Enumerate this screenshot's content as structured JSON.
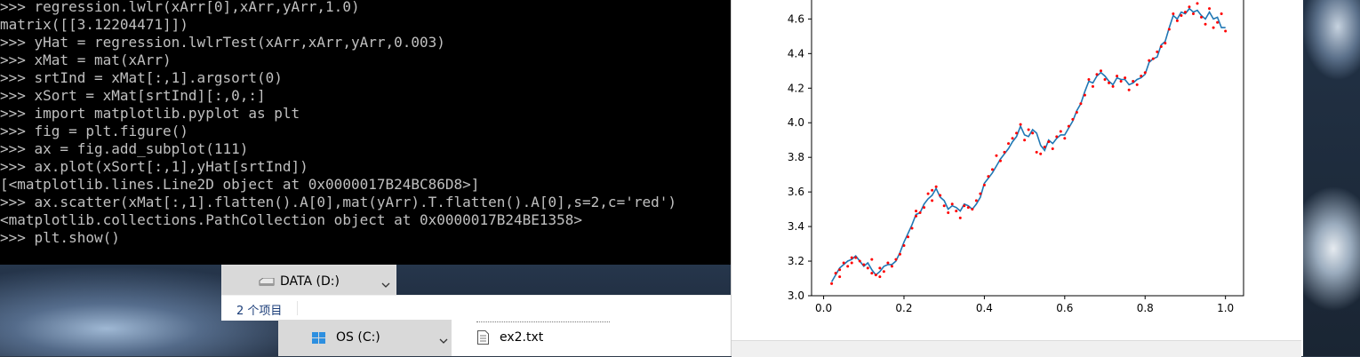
{
  "console": {
    "lines": [
      ">>> regression.lwlr(xArr[0],xArr,yArr,1.0)",
      "matrix([[3.12204471]])",
      ">>> yHat = regression.lwlrTest(xArr,xArr,yArr,0.003)",
      ">>> xMat = mat(xArr)",
      ">>> srtInd = xMat[:,1].argsort(0)",
      ">>> xSort = xMat[srtInd][:,0,:]",
      ">>> import matplotlib.pyplot as plt",
      ">>> fig = plt.figure()",
      ">>> ax = fig.add_subplot(111)",
      ">>> ax.plot(xSort[:,1],yHat[srtInd])",
      "[<matplotlib.lines.Line2D object at 0x0000017B24BC86D8>]",
      ">>> ax.scatter(xMat[:,1].flatten().A[0],mat(yArr).T.flatten().A[0],s=2,c='red')",
      "<matplotlib.collections.PathCollection object at 0x0000017B24BE1358>",
      ">>> plt.show()"
    ]
  },
  "explorer": {
    "drive_d_label": "DATA (D:)",
    "status_count": "2 个项目",
    "drive_c_label": "OS (C:)",
    "file_name": "ex2.txt"
  },
  "chart_data": {
    "type": "scatter",
    "xlim": [
      -0.03,
      1.045
    ],
    "ylim": [
      3.0,
      4.72
    ],
    "xticks": [
      "0.0",
      "0.2",
      "0.4",
      "0.6",
      "0.8",
      "1.0"
    ],
    "xtick_values": [
      0.0,
      0.2,
      0.4,
      0.6,
      0.8,
      1.0
    ],
    "yticks": [
      "3.0",
      "3.2",
      "3.4",
      "3.6",
      "3.8",
      "4.0",
      "4.2",
      "4.4",
      "4.6"
    ],
    "ytick_values": [
      3.0,
      3.2,
      3.4,
      3.6,
      3.8,
      4.0,
      4.2,
      4.4,
      4.6
    ],
    "grid": false,
    "line_color": "#1f77b4",
    "point_color": "#ff0000",
    "line": {
      "x": [
        0.02,
        0.03,
        0.04,
        0.05,
        0.06,
        0.07,
        0.08,
        0.09,
        0.1,
        0.11,
        0.12,
        0.13,
        0.14,
        0.15,
        0.16,
        0.17,
        0.18,
        0.19,
        0.2,
        0.21,
        0.22,
        0.23,
        0.24,
        0.25,
        0.26,
        0.27,
        0.28,
        0.29,
        0.3,
        0.31,
        0.32,
        0.33,
        0.34,
        0.35,
        0.36,
        0.37,
        0.38,
        0.39,
        0.4,
        0.41,
        0.42,
        0.43,
        0.44,
        0.45,
        0.46,
        0.47,
        0.48,
        0.49,
        0.5,
        0.51,
        0.52,
        0.53,
        0.54,
        0.55,
        0.56,
        0.57,
        0.58,
        0.59,
        0.6,
        0.61,
        0.62,
        0.63,
        0.64,
        0.65,
        0.66,
        0.67,
        0.68,
        0.69,
        0.7,
        0.71,
        0.72,
        0.73,
        0.74,
        0.75,
        0.76,
        0.77,
        0.78,
        0.79,
        0.8,
        0.81,
        0.82,
        0.83,
        0.84,
        0.85,
        0.86,
        0.87,
        0.88,
        0.89,
        0.9,
        0.91,
        0.92,
        0.93,
        0.94,
        0.95,
        0.96,
        0.97,
        0.98,
        0.99,
        1.0
      ],
      "y": [
        3.08,
        3.12,
        3.16,
        3.18,
        3.2,
        3.21,
        3.23,
        3.2,
        3.17,
        3.19,
        3.15,
        3.12,
        3.14,
        3.17,
        3.18,
        3.18,
        3.2,
        3.25,
        3.31,
        3.36,
        3.41,
        3.47,
        3.48,
        3.53,
        3.56,
        3.58,
        3.62,
        3.57,
        3.55,
        3.5,
        3.52,
        3.51,
        3.49,
        3.53,
        3.52,
        3.5,
        3.53,
        3.57,
        3.65,
        3.68,
        3.71,
        3.75,
        3.79,
        3.82,
        3.85,
        3.89,
        3.92,
        3.98,
        3.93,
        3.92,
        3.96,
        3.94,
        3.87,
        3.84,
        3.9,
        3.88,
        3.91,
        3.93,
        3.93,
        3.97,
        4.01,
        4.07,
        4.11,
        4.18,
        4.24,
        4.23,
        4.27,
        4.29,
        4.27,
        4.24,
        4.22,
        4.26,
        4.25,
        4.25,
        4.22,
        4.23,
        4.25,
        4.26,
        4.28,
        4.35,
        4.37,
        4.38,
        4.45,
        4.47,
        4.55,
        4.62,
        4.6,
        4.64,
        4.63,
        4.66,
        4.64,
        4.65,
        4.62,
        4.6,
        4.64,
        4.6,
        4.61,
        4.55,
        4.55
      ]
    },
    "points": {
      "x": [
        0.02,
        0.03,
        0.04,
        0.04,
        0.05,
        0.06,
        0.07,
        0.07,
        0.08,
        0.09,
        0.1,
        0.11,
        0.12,
        0.12,
        0.13,
        0.14,
        0.14,
        0.15,
        0.16,
        0.17,
        0.18,
        0.19,
        0.2,
        0.21,
        0.22,
        0.23,
        0.23,
        0.24,
        0.25,
        0.26,
        0.27,
        0.27,
        0.28,
        0.29,
        0.3,
        0.31,
        0.32,
        0.33,
        0.34,
        0.35,
        0.36,
        0.37,
        0.38,
        0.39,
        0.4,
        0.41,
        0.42,
        0.43,
        0.44,
        0.45,
        0.46,
        0.47,
        0.48,
        0.49,
        0.5,
        0.51,
        0.52,
        0.53,
        0.54,
        0.55,
        0.56,
        0.57,
        0.58,
        0.59,
        0.6,
        0.61,
        0.62,
        0.63,
        0.64,
        0.65,
        0.66,
        0.67,
        0.68,
        0.69,
        0.7,
        0.71,
        0.72,
        0.73,
        0.74,
        0.75,
        0.76,
        0.77,
        0.78,
        0.79,
        0.8,
        0.81,
        0.82,
        0.83,
        0.84,
        0.85,
        0.86,
        0.87,
        0.88,
        0.89,
        0.9,
        0.91,
        0.92,
        0.93,
        0.94,
        0.95,
        0.96,
        0.97,
        0.98,
        0.99,
        1.0
      ],
      "y": [
        3.07,
        3.13,
        3.15,
        3.11,
        3.19,
        3.17,
        3.22,
        3.19,
        3.22,
        3.2,
        3.18,
        3.16,
        3.21,
        3.13,
        3.12,
        3.11,
        3.16,
        3.14,
        3.19,
        3.17,
        3.21,
        3.24,
        3.29,
        3.34,
        3.39,
        3.46,
        3.49,
        3.48,
        3.51,
        3.59,
        3.55,
        3.61,
        3.63,
        3.58,
        3.52,
        3.48,
        3.53,
        3.49,
        3.45,
        3.52,
        3.51,
        3.5,
        3.55,
        3.59,
        3.64,
        3.69,
        3.73,
        3.81,
        3.78,
        3.83,
        3.88,
        3.91,
        3.94,
        3.99,
        3.9,
        3.96,
        3.94,
        3.83,
        3.82,
        3.86,
        3.89,
        3.85,
        3.92,
        3.95,
        3.91,
        3.98,
        4.02,
        4.06,
        4.11,
        4.16,
        4.25,
        4.21,
        4.28,
        4.3,
        4.25,
        4.23,
        4.21,
        4.27,
        4.24,
        4.26,
        4.19,
        4.24,
        4.22,
        4.27,
        4.29,
        4.36,
        4.37,
        4.41,
        4.44,
        4.46,
        4.54,
        4.63,
        4.59,
        4.62,
        4.64,
        4.67,
        4.63,
        4.69,
        4.61,
        4.57,
        4.66,
        4.55,
        4.58,
        4.63,
        4.53
      ]
    }
  }
}
